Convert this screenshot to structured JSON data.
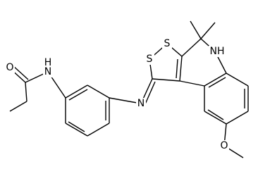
{
  "atoms": [
    {
      "label": "O"
    },
    {
      "label": "H"
    },
    {
      "label": "N"
    },
    {
      "label": "S"
    },
    {
      "label": "S"
    },
    {
      "label": "N"
    },
    {
      "label": "NH"
    },
    {
      "label": "O"
    }
  ]
}
